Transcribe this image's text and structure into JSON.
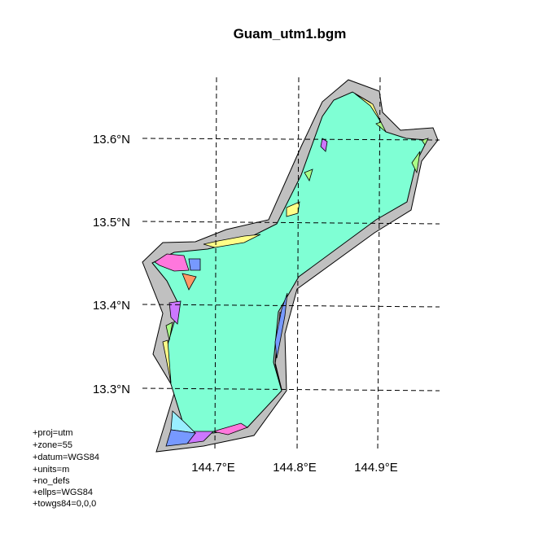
{
  "map": {
    "title": "Guam_utm1.bgm",
    "lat_labels": [
      "13.6°N",
      "13.5°N",
      "13.4°N",
      "13.3°N"
    ],
    "lon_labels": [
      "144.7°E",
      "144.8°E",
      "144.9°E"
    ],
    "projection_lines": [
      "+proj=utm",
      "+zone=55",
      "+datum=WGS84",
      "+units=m",
      "+no_defs",
      "+ellps=WGS84",
      "+towgs84=0,0,0"
    ],
    "colors": {
      "land": "#7fffd4",
      "outer_shelf": "#c0c0c0",
      "pink": "#ff77dd",
      "blue": "#7799ff",
      "salmon": "#ff9966",
      "violet": "#cc77ff",
      "yellow": "#ffff88",
      "green": "#aaff88",
      "cyan": "#99eeff"
    }
  }
}
